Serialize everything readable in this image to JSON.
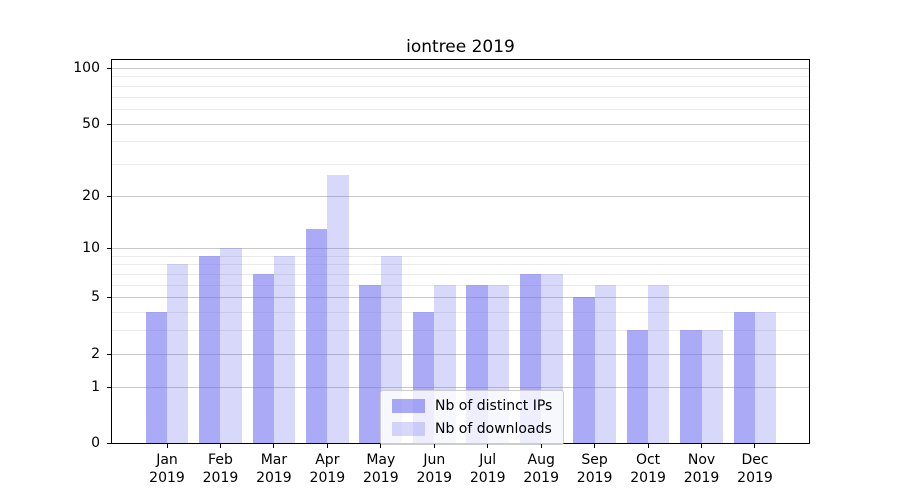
{
  "chart_data": {
    "type": "bar",
    "title": "iontree 2019",
    "categories": [
      "Jan 2019",
      "Feb 2019",
      "Mar 2019",
      "Apr 2019",
      "May 2019",
      "Jun 2019",
      "Jul 2019",
      "Aug 2019",
      "Sep 2019",
      "Oct 2019",
      "Nov 2019",
      "Dec 2019"
    ],
    "series": [
      {
        "name": "Nb of distinct IPs",
        "color": "rgba(100,100,240,0.55)",
        "color_on_white": "#a8a8f0",
        "values": [
          4,
          9,
          7,
          13,
          6,
          4,
          6,
          7,
          5,
          3,
          3,
          4
        ]
      },
      {
        "name": "Nb of downloads",
        "color": "rgba(100,100,240,0.25)",
        "color_on_white": "#d8d8fa",
        "values": [
          8,
          10,
          9,
          26,
          9,
          6,
          6,
          7,
          6,
          6,
          3,
          4
        ]
      }
    ],
    "xlabel": "",
    "ylabel": "",
    "y_axis": {
      "scale": "log1p",
      "tick_values": [
        0,
        1,
        2,
        5,
        10,
        20,
        50,
        100
      ],
      "minor_gridline_values": [
        3,
        4,
        6,
        7,
        8,
        9,
        30,
        40,
        60,
        70,
        80,
        90
      ],
      "ylim": [
        0,
        115
      ]
    },
    "grid": true,
    "legend_position": "lower center"
  }
}
